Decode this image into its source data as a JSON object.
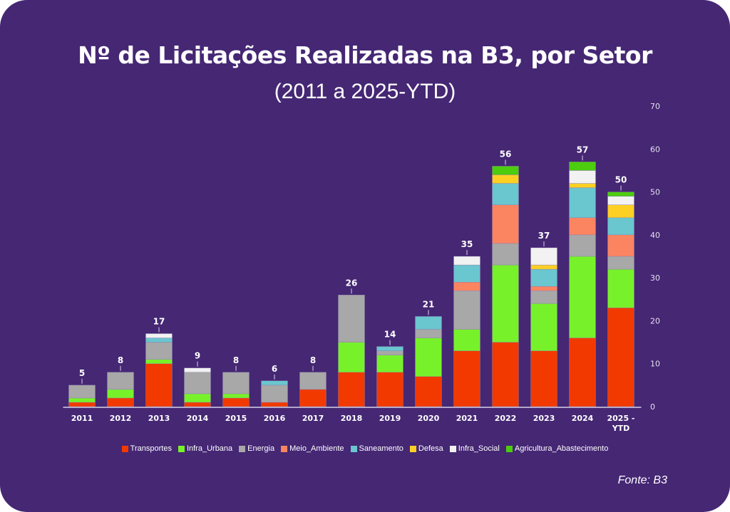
{
  "chart_data": {
    "type": "bar",
    "stacked": true,
    "title": "Nº de Licitações Realizadas na B3, por Setor",
    "subtitle": "(2011 a 2025-YTD)",
    "xlabel": "",
    "ylabel": "",
    "ylim": [
      0,
      70
    ],
    "yticks": [
      0,
      10,
      20,
      30,
      40,
      50,
      60,
      70
    ],
    "y_axis_position": "right",
    "grid": false,
    "legend_position": "bottom",
    "categories": [
      "2011",
      "2012",
      "2013",
      "2014",
      "2015",
      "2016",
      "2017",
      "2018",
      "2019",
      "2020",
      "2021",
      "2022",
      "2023",
      "2024",
      "2025 - YTD"
    ],
    "category_labels": [
      [
        "2011"
      ],
      [
        "2012"
      ],
      [
        "2013"
      ],
      [
        "2014"
      ],
      [
        "2015"
      ],
      [
        "2016"
      ],
      [
        "2017"
      ],
      [
        "2018"
      ],
      [
        "2019"
      ],
      [
        "2020"
      ],
      [
        "2021"
      ],
      [
        "2022"
      ],
      [
        "2023"
      ],
      [
        "2024"
      ],
      [
        "2025 -",
        "YTD"
      ]
    ],
    "totals": [
      5,
      8,
      17,
      9,
      8,
      6,
      8,
      26,
      14,
      21,
      35,
      56,
      37,
      57,
      50
    ],
    "series": [
      {
        "name": "Transportes",
        "color": "#f23a00",
        "values": [
          1,
          2,
          10,
          1,
          2,
          1,
          4,
          8,
          8,
          7,
          13,
          15,
          13,
          16,
          23
        ]
      },
      {
        "name": "Infra_Urbana",
        "color": "#77f22a",
        "values": [
          1,
          2,
          1,
          2,
          1,
          0,
          0,
          7,
          4,
          9,
          5,
          18,
          11,
          19,
          9
        ]
      },
      {
        "name": "Energia",
        "color": "#a8a8a8",
        "values": [
          3,
          4,
          4,
          5,
          5,
          4,
          4,
          11,
          1,
          2,
          9,
          5,
          3,
          5,
          3
        ]
      },
      {
        "name": "Meio_Ambiente",
        "color": "#fb8461",
        "values": [
          0,
          0,
          0,
          0,
          0,
          0,
          0,
          0,
          0,
          0,
          2,
          9,
          1,
          4,
          5
        ]
      },
      {
        "name": "Saneamento",
        "color": "#6ac6cf",
        "values": [
          0,
          0,
          1,
          0,
          0,
          1,
          0,
          0,
          1,
          3,
          4,
          5,
          4,
          7,
          4
        ]
      },
      {
        "name": "Defesa",
        "color": "#fdd023",
        "values": [
          0,
          0,
          0,
          0,
          0,
          0,
          0,
          0,
          0,
          0,
          0,
          2,
          1,
          1,
          3
        ]
      },
      {
        "name": "Infra_Social",
        "color": "#f2f2f2",
        "values": [
          0,
          0,
          1,
          1,
          0,
          0,
          0,
          0,
          0,
          0,
          2,
          0,
          4,
          3,
          2
        ]
      },
      {
        "name": "Agricultura_Abastecimento",
        "color": "#4ccd0d",
        "values": [
          0,
          0,
          0,
          0,
          0,
          0,
          0,
          0,
          0,
          0,
          0,
          2,
          0,
          2,
          1
        ]
      }
    ],
    "source": "Fonte: B3"
  }
}
